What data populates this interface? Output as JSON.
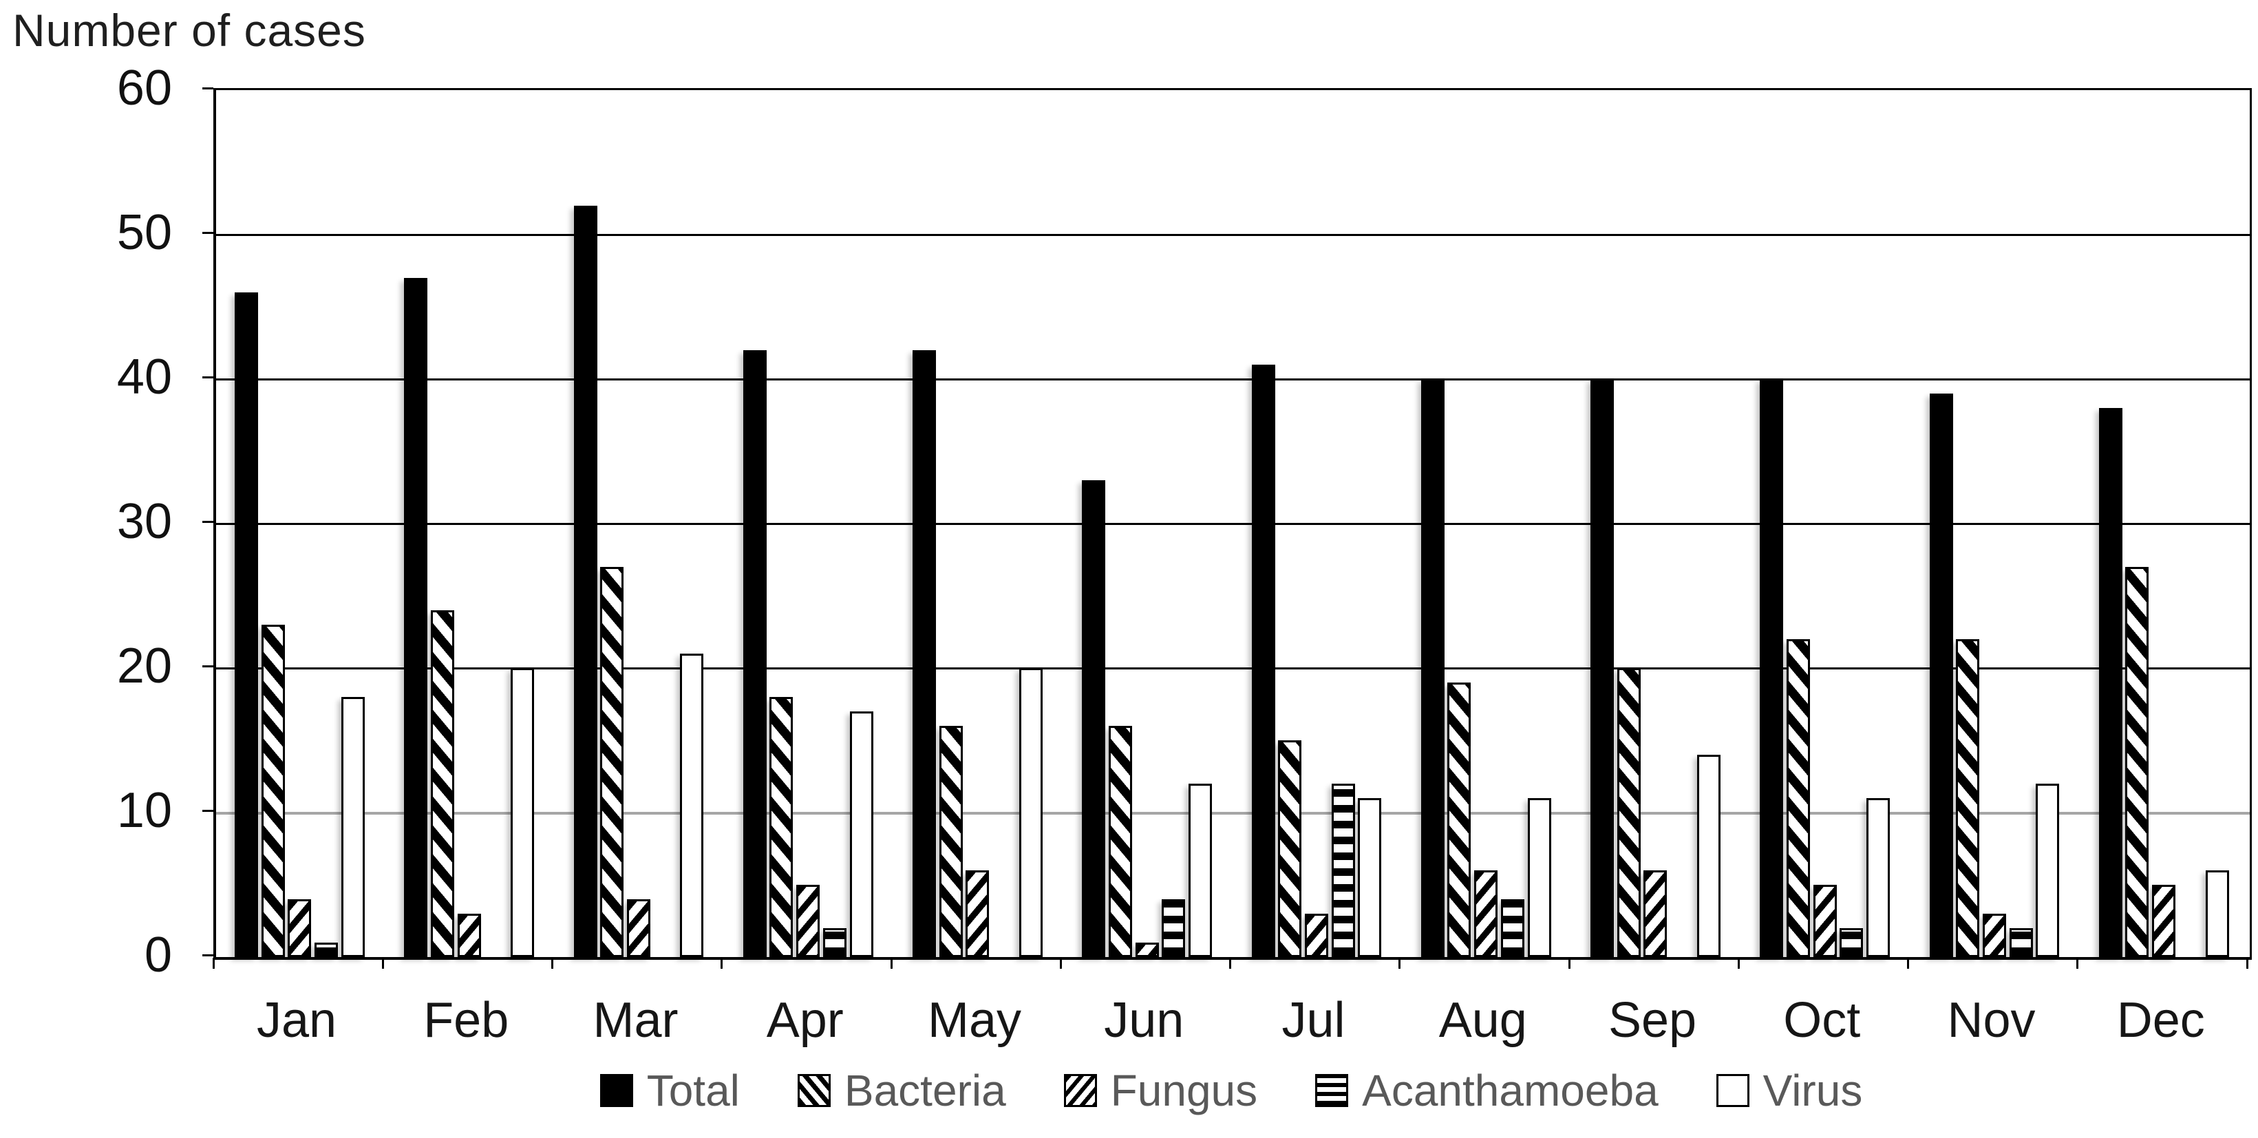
{
  "chart_data": {
    "type": "bar",
    "title": "Number of cases",
    "categories": [
      "Jan",
      "Feb",
      "Mar",
      "Apr",
      "May",
      "Jun",
      "Jul",
      "Aug",
      "Sep",
      "Oct",
      "Nov",
      "Dec"
    ],
    "series": [
      {
        "name": "Total",
        "pattern": "solid-black",
        "values": [
          46,
          47,
          52,
          42,
          42,
          33,
          41,
          40,
          40,
          40,
          39,
          38
        ]
      },
      {
        "name": "Bacteria",
        "pattern": "diagonal-down-wide",
        "values": [
          23,
          24,
          27,
          18,
          16,
          16,
          15,
          19,
          20,
          22,
          22,
          27
        ]
      },
      {
        "name": "Fungus",
        "pattern": "diagonal-up-thin",
        "values": [
          4,
          3,
          4,
          5,
          6,
          1,
          3,
          6,
          6,
          5,
          3,
          5
        ]
      },
      {
        "name": "Acanthamoeba",
        "pattern": "horizontal-stripes",
        "values": [
          1,
          0,
          0,
          2,
          0,
          4,
          12,
          4,
          0,
          2,
          2,
          0
        ]
      },
      {
        "name": "Virus",
        "pattern": "white-outline",
        "values": [
          18,
          20,
          21,
          17,
          20,
          12,
          11,
          11,
          14,
          11,
          12,
          6
        ]
      }
    ],
    "y_axis": {
      "min": 0,
      "max": 60,
      "step": 10,
      "ticks": [
        0,
        10,
        20,
        30,
        40,
        50,
        60
      ]
    },
    "grid": {
      "on": true,
      "color_default": "#000000",
      "color_line_10": "#a6a6a6"
    },
    "legend_position": "bottom",
    "colors": {
      "bar_fill": "#000000",
      "bar_outline": "#000000",
      "legend_text": "#595959",
      "axis_label_text": "#111111",
      "title_text": "#1f1f1f"
    }
  }
}
